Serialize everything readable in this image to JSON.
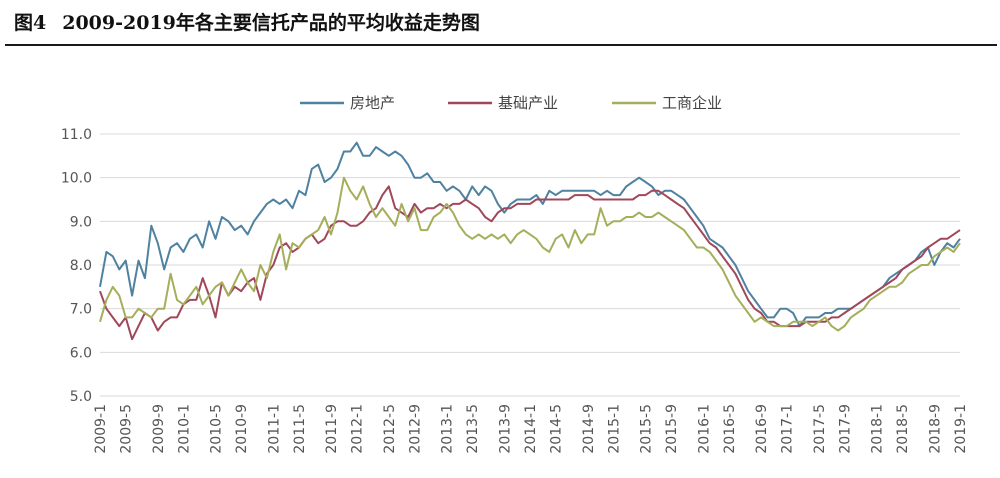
{
  "figure": {
    "label": "图4",
    "title": "2009-2019年各主要信托产品的平均收益走势图"
  },
  "chart_data": {
    "type": "line",
    "title": "2009-2019年各主要信托产品的平均收益走势图",
    "xlabel": "",
    "ylabel": "",
    "ylim": [
      5.0,
      11.0
    ],
    "yticks": [
      "5.0",
      "6.0",
      "7.0",
      "8.0",
      "9.0",
      "10.0",
      "11.0"
    ],
    "x_tick_labels": [
      "2009-1",
      "2009-5",
      "2009-9",
      "2010-1",
      "2010-5",
      "2010-9",
      "2011-1",
      "2011-5",
      "2011-9",
      "2012-1",
      "2012-5",
      "2012-9",
      "2013-1",
      "2013-5",
      "2013-9",
      "2014-1",
      "2014-5",
      "2014-9",
      "2015-1",
      "2015-5",
      "2015-9",
      "2016-1",
      "2016-5",
      "2016-9",
      "2017-1",
      "2017-5",
      "2017-9",
      "2018-1",
      "2018-5",
      "2018-9",
      "2019-1"
    ],
    "grid": "horizontal",
    "legend_position": "top",
    "series": [
      {
        "name": "房地产",
        "color": "#4f81a0",
        "values": [
          7.5,
          8.3,
          8.2,
          7.9,
          8.1,
          7.3,
          8.1,
          7.7,
          8.9,
          8.5,
          7.9,
          8.4,
          8.5,
          8.3,
          8.6,
          8.7,
          8.4,
          9.0,
          8.6,
          9.1,
          9.0,
          8.8,
          8.9,
          8.7,
          9.0,
          9.2,
          9.4,
          9.5,
          9.4,
          9.5,
          9.3,
          9.7,
          9.6,
          10.2,
          10.3,
          9.9,
          10.0,
          10.2,
          10.6,
          10.6,
          10.8,
          10.5,
          10.5,
          10.7,
          10.6,
          10.5,
          10.6,
          10.5,
          10.3,
          10.0,
          10.0,
          10.1,
          9.9,
          9.9,
          9.7,
          9.8,
          9.7,
          9.5,
          9.8,
          9.6,
          9.8,
          9.7,
          9.4,
          9.2,
          9.4,
          9.5,
          9.5,
          9.5,
          9.6,
          9.4,
          9.7,
          9.6,
          9.7,
          9.7,
          9.7,
          9.7,
          9.7,
          9.7,
          9.6,
          9.7,
          9.6,
          9.6,
          9.8,
          9.9,
          10.0,
          9.9,
          9.8,
          9.6,
          9.7,
          9.7,
          9.6,
          9.5,
          9.3,
          9.1,
          8.9,
          8.6,
          8.5,
          8.4,
          8.2,
          8.0,
          7.7,
          7.4,
          7.2,
          7.0,
          6.8,
          6.8,
          7.0,
          7.0,
          6.9,
          6.6,
          6.8,
          6.8,
          6.8,
          6.9,
          6.9,
          7.0,
          7.0,
          7.0,
          7.1,
          7.2,
          7.3,
          7.4,
          7.5,
          7.7,
          7.8,
          7.9,
          8.0,
          8.1,
          8.3,
          8.4,
          8.0,
          8.3,
          8.5,
          8.4,
          8.6
        ]
      },
      {
        "name": "基础产业",
        "color": "#a0485a",
        "values": [
          7.4,
          7.0,
          6.8,
          6.6,
          6.8,
          6.3,
          6.6,
          6.9,
          6.8,
          6.5,
          6.7,
          6.8,
          6.8,
          7.1,
          7.2,
          7.2,
          7.7,
          7.3,
          6.8,
          7.6,
          7.3,
          7.5,
          7.4,
          7.6,
          7.7,
          7.2,
          7.8,
          8.0,
          8.4,
          8.5,
          8.3,
          8.4,
          8.6,
          8.7,
          8.5,
          8.6,
          8.9,
          9.0,
          9.0,
          8.9,
          8.9,
          9.0,
          9.2,
          9.3,
          9.6,
          9.8,
          9.3,
          9.2,
          9.1,
          9.4,
          9.2,
          9.3,
          9.3,
          9.4,
          9.3,
          9.4,
          9.4,
          9.5,
          9.4,
          9.3,
          9.1,
          9.0,
          9.2,
          9.3,
          9.3,
          9.4,
          9.4,
          9.4,
          9.5,
          9.5,
          9.5,
          9.5,
          9.5,
          9.5,
          9.6,
          9.6,
          9.6,
          9.5,
          9.5,
          9.5,
          9.5,
          9.5,
          9.5,
          9.5,
          9.6,
          9.6,
          9.7,
          9.7,
          9.6,
          9.5,
          9.4,
          9.3,
          9.1,
          8.9,
          8.7,
          8.5,
          8.4,
          8.2,
          8.0,
          7.8,
          7.5,
          7.2,
          7.0,
          6.9,
          6.7,
          6.7,
          6.6,
          6.6,
          6.6,
          6.6,
          6.7,
          6.7,
          6.7,
          6.7,
          6.8,
          6.8,
          6.9,
          7.0,
          7.1,
          7.2,
          7.3,
          7.4,
          7.5,
          7.6,
          7.7,
          7.9,
          8.0,
          8.1,
          8.2,
          8.4,
          8.5,
          8.6,
          8.6,
          8.7,
          8.8
        ]
      },
      {
        "name": "工商企业",
        "color": "#a5ae5a",
        "values": [
          6.7,
          7.2,
          7.5,
          7.3,
          6.8,
          6.8,
          7.0,
          6.9,
          6.8,
          7.0,
          7.0,
          7.8,
          7.2,
          7.1,
          7.3,
          7.5,
          7.1,
          7.3,
          7.5,
          7.6,
          7.3,
          7.6,
          7.9,
          7.6,
          7.4,
          8.0,
          7.7,
          8.3,
          8.7,
          7.9,
          8.5,
          8.4,
          8.6,
          8.7,
          8.8,
          9.1,
          8.7,
          9.2,
          10.0,
          9.7,
          9.5,
          9.8,
          9.4,
          9.1,
          9.3,
          9.1,
          8.9,
          9.4,
          9.0,
          9.3,
          8.8,
          8.8,
          9.1,
          9.2,
          9.4,
          9.2,
          8.9,
          8.7,
          8.6,
          8.7,
          8.6,
          8.7,
          8.6,
          8.7,
          8.5,
          8.7,
          8.8,
          8.7,
          8.6,
          8.4,
          8.3,
          8.6,
          8.7,
          8.4,
          8.8,
          8.5,
          8.7,
          8.7,
          9.3,
          8.9,
          9.0,
          9.0,
          9.1,
          9.1,
          9.2,
          9.1,
          9.1,
          9.2,
          9.1,
          9.0,
          8.9,
          8.8,
          8.6,
          8.4,
          8.4,
          8.3,
          8.1,
          7.9,
          7.6,
          7.3,
          7.1,
          6.9,
          6.7,
          6.8,
          6.7,
          6.6,
          6.6,
          6.6,
          6.7,
          6.7,
          6.7,
          6.6,
          6.7,
          6.8,
          6.6,
          6.5,
          6.6,
          6.8,
          6.9,
          7.0,
          7.2,
          7.3,
          7.4,
          7.5,
          7.5,
          7.6,
          7.8,
          7.9,
          8.0,
          8.0,
          8.2,
          8.3,
          8.4,
          8.3,
          8.5
        ]
      }
    ]
  }
}
